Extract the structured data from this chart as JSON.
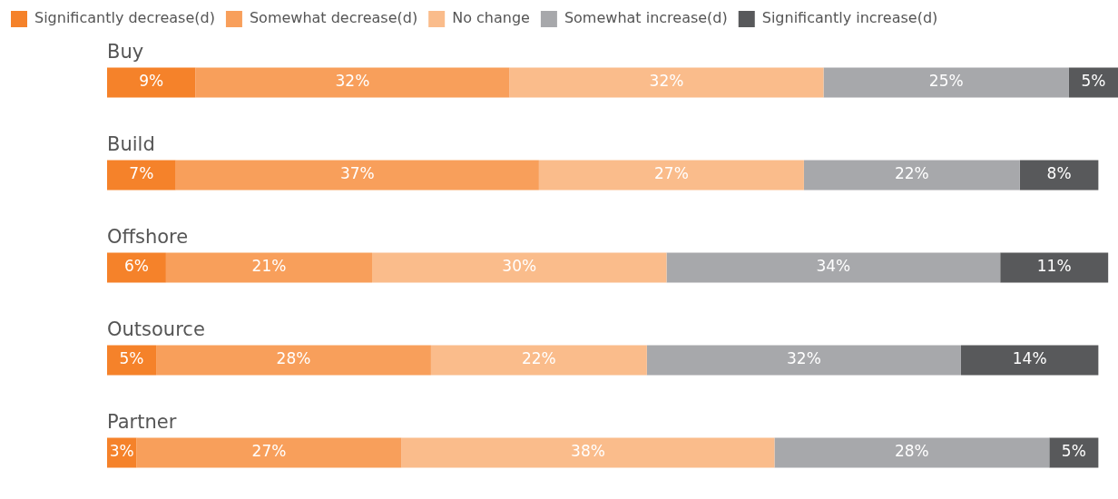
{
  "chart_data": {
    "type": "bar",
    "orientation": "horizontal",
    "stacked": true,
    "legend": "top left",
    "tick_labels": false,
    "categories": [
      "Buy",
      "Build",
      "Offshore",
      "Outsource",
      "Partner"
    ],
    "series": [
      {
        "name": "Significantly decrease(d)",
        "color": "#f5822a",
        "values": [
          9,
          7,
          6,
          5,
          3
        ],
        "value_labels": [
          "9%",
          "7%",
          "6%",
          "5%",
          "3%"
        ]
      },
      {
        "name": "Somewhat decrease(d)",
        "color": "#f89f5b",
        "values": [
          32,
          37,
          21,
          28,
          27
        ],
        "value_labels": [
          "32%",
          "37%",
          "21%",
          "28%",
          "27%"
        ]
      },
      {
        "name": "No change",
        "color": "#fabc8b",
        "values": [
          32,
          27,
          30,
          22,
          38
        ],
        "value_labels": [
          "32%",
          "27%",
          "30%",
          "22%",
          "38%"
        ]
      },
      {
        "name": "Somewhat increase(d)",
        "color": "#a7a8ab",
        "values": [
          25,
          22,
          34,
          32,
          28
        ],
        "value_labels": [
          "25%",
          "22%",
          "34%",
          "32%",
          "28%"
        ]
      },
      {
        "name": "Significantly increase(d)",
        "color": "#58595b",
        "values": [
          5,
          8,
          11,
          14,
          5
        ],
        "value_labels": [
          "5%",
          "8%",
          "11%",
          "14%",
          "5%"
        ]
      }
    ]
  }
}
